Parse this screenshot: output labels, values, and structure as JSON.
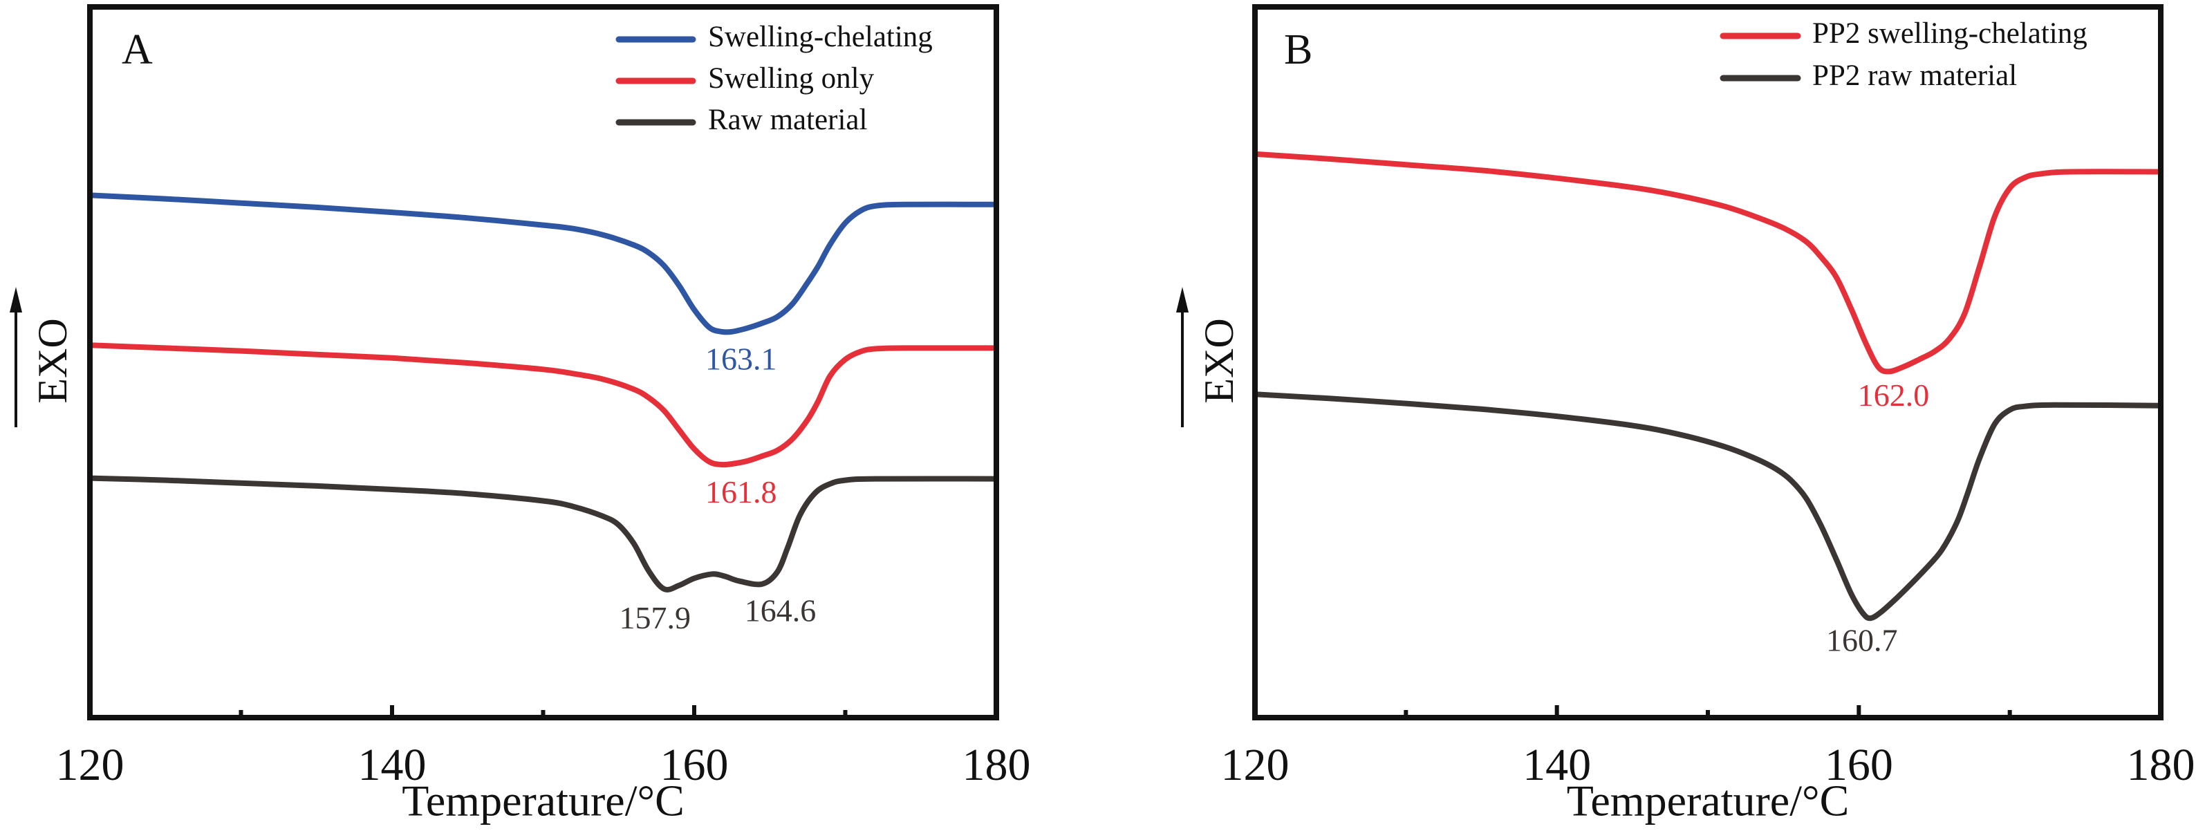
{
  "chart_data": [
    {
      "type": "line",
      "panel_label": "A",
      "title": "",
      "xlabel": "Temperature/°C",
      "ylabel": "EXO",
      "ylabel_arrow": "up",
      "xlim": [
        120,
        180
      ],
      "x_major_ticks": [
        120,
        140,
        160,
        180
      ],
      "x_minor_ticks": [
        130,
        150,
        170
      ],
      "x_tick_labels": [
        "120",
        "140",
        "160",
        "180"
      ],
      "ylim": [
        0,
        100
      ],
      "y_units": "arbitrary (stacked heat flow, no scale shown)",
      "grid": false,
      "legend_position": "top-right",
      "series": [
        {
          "name": "Swelling-chelating",
          "color": "#2f56a3",
          "points": [
            [
              120,
              73.5
            ],
            [
              125,
              73.0
            ],
            [
              130,
              72.4
            ],
            [
              135,
              71.8
            ],
            [
              140,
              71.1
            ],
            [
              145,
              70.3
            ],
            [
              150,
              69.3
            ],
            [
              152,
              68.8
            ],
            [
              154,
              67.9
            ],
            [
              156,
              66.5
            ],
            [
              157,
              65.4
            ],
            [
              158,
              63.6
            ],
            [
              159,
              60.8
            ],
            [
              160,
              57.4
            ],
            [
              161,
              54.9
            ],
            [
              161.8,
              54.3
            ],
            [
              162.5,
              54.3
            ],
            [
              163.5,
              54.8
            ],
            [
              164.5,
              55.5
            ],
            [
              165.5,
              56.4
            ],
            [
              166.5,
              58.2
            ],
            [
              167.5,
              61.2
            ],
            [
              168.2,
              63.5
            ],
            [
              169,
              66.6
            ],
            [
              170,
              69.6
            ],
            [
              171,
              71.3
            ],
            [
              172,
              72.0
            ],
            [
              174,
              72.2
            ],
            [
              180,
              72.2
            ]
          ],
          "annotations": [
            {
              "text": "163.1",
              "x": 163.1,
              "y": 50.0
            }
          ]
        },
        {
          "name": "Swelling only",
          "color": "#e5303a",
          "points": [
            [
              120,
              52.4
            ],
            [
              125,
              52.0
            ],
            [
              130,
              51.6
            ],
            [
              135,
              51.1
            ],
            [
              140,
              50.6
            ],
            [
              145,
              49.9
            ],
            [
              150,
              49.0
            ],
            [
              152,
              48.4
            ],
            [
              154,
              47.6
            ],
            [
              156,
              46.2
            ],
            [
              157,
              45.0
            ],
            [
              158,
              43.2
            ],
            [
              159,
              40.5
            ],
            [
              160,
              37.8
            ],
            [
              161,
              36.0
            ],
            [
              161.8,
              35.6
            ],
            [
              162.5,
              35.7
            ],
            [
              163.5,
              36.1
            ],
            [
              164.5,
              36.8
            ],
            [
              165.5,
              37.6
            ],
            [
              166.5,
              39.2
            ],
            [
              167.5,
              41.9
            ],
            [
              168.2,
              44.5
            ],
            [
              169,
              48.1
            ],
            [
              170,
              50.4
            ],
            [
              171,
              51.5
            ],
            [
              172,
              51.9
            ],
            [
              174,
              52.0
            ],
            [
              180,
              52.0
            ]
          ],
          "annotations": [
            {
              "text": "161.8",
              "x": 163.1,
              "y": 31.3
            }
          ]
        },
        {
          "name": "Raw material",
          "color": "#3b3634",
          "points": [
            [
              120,
              33.7
            ],
            [
              125,
              33.4
            ],
            [
              130,
              33.0
            ],
            [
              135,
              32.6
            ],
            [
              140,
              32.1
            ],
            [
              145,
              31.5
            ],
            [
              150,
              30.5
            ],
            [
              152,
              29.7
            ],
            [
              154,
              28.3
            ],
            [
              155,
              27.1
            ],
            [
              156,
              24.5
            ],
            [
              157,
              20.6
            ],
            [
              158,
              18.1
            ],
            [
              159,
              18.6
            ],
            [
              160,
              19.6
            ],
            [
              161.2,
              20.2
            ],
            [
              162,
              19.9
            ],
            [
              163,
              19.2
            ],
            [
              164.5,
              18.8
            ],
            [
              165.5,
              20.5
            ],
            [
              166.2,
              24.0
            ],
            [
              167,
              28.5
            ],
            [
              168,
              31.6
            ],
            [
              169,
              32.9
            ],
            [
              170,
              33.4
            ],
            [
              172,
              33.6
            ],
            [
              180,
              33.6
            ]
          ],
          "annotations": [
            {
              "text": "157.9",
              "x": 157.4,
              "y": 13.6
            },
            {
              "text": "164.6",
              "x": 165.7,
              "y": 14.6
            }
          ]
        }
      ]
    },
    {
      "type": "line",
      "panel_label": "B",
      "title": "",
      "xlabel": "Temperature/°C",
      "ylabel": "EXO",
      "ylabel_arrow": "up",
      "xlim": [
        120,
        180
      ],
      "x_major_ticks": [
        120,
        140,
        160,
        180
      ],
      "x_minor_ticks": [
        130,
        150,
        170
      ],
      "x_tick_labels": [
        "120",
        "140",
        "160",
        "180"
      ],
      "ylim": [
        0,
        100
      ],
      "y_units": "arbitrary (stacked heat flow, no scale shown)",
      "grid": false,
      "legend_position": "top-right",
      "series": [
        {
          "name": "PP2 swelling-chelating",
          "color": "#e5303a",
          "points": [
            [
              120,
              79.3
            ],
            [
              125,
              78.6
            ],
            [
              130,
              77.8
            ],
            [
              135,
              77.0
            ],
            [
              140,
              75.9
            ],
            [
              145,
              74.6
            ],
            [
              148,
              73.5
            ],
            [
              151,
              72.0
            ],
            [
              153,
              70.6
            ],
            [
              155,
              68.9
            ],
            [
              156.5,
              67.0
            ],
            [
              157.5,
              64.8
            ],
            [
              158.5,
              62.0
            ],
            [
              159.5,
              57.5
            ],
            [
              160.5,
              52.5
            ],
            [
              161.3,
              49.3
            ],
            [
              162,
              48.7
            ],
            [
              163,
              49.4
            ],
            [
              164,
              50.4
            ],
            [
              165,
              51.5
            ],
            [
              166,
              53.3
            ],
            [
              167,
              56.8
            ],
            [
              168,
              63.5
            ],
            [
              169,
              70.5
            ],
            [
              170,
              74.5
            ],
            [
              171,
              76.0
            ],
            [
              172,
              76.5
            ],
            [
              174,
              76.8
            ],
            [
              180,
              76.8
            ]
          ],
          "annotations": [
            {
              "text": "162.0",
              "x": 162.3,
              "y": 44.9
            }
          ]
        },
        {
          "name": "PP2 raw material",
          "color": "#3b3634",
          "points": [
            [
              120,
              45.5
            ],
            [
              125,
              44.9
            ],
            [
              130,
              44.2
            ],
            [
              135,
              43.4
            ],
            [
              140,
              42.4
            ],
            [
              145,
              41.1
            ],
            [
              148,
              39.9
            ],
            [
              151,
              38.2
            ],
            [
              153,
              36.6
            ],
            [
              154.5,
              35.0
            ],
            [
              155.5,
              33.4
            ],
            [
              156.5,
              30.9
            ],
            [
              157.5,
              27.0
            ],
            [
              158.5,
              22.3
            ],
            [
              159.5,
              17.4
            ],
            [
              160.3,
              14.6
            ],
            [
              160.8,
              14.0
            ],
            [
              161.5,
              14.9
            ],
            [
              162.5,
              16.8
            ],
            [
              163.5,
              18.9
            ],
            [
              164.5,
              21.1
            ],
            [
              165.5,
              23.6
            ],
            [
              166.5,
              27.5
            ],
            [
              167.2,
              31.5
            ],
            [
              168,
              36.5
            ],
            [
              169,
              41.3
            ],
            [
              170,
              43.3
            ],
            [
              171,
              43.8
            ],
            [
              173,
              44.0
            ],
            [
              180,
              43.9
            ]
          ],
          "annotations": [
            {
              "text": "160.7",
              "x": 160.2,
              "y": 10.4
            }
          ]
        }
      ]
    }
  ]
}
